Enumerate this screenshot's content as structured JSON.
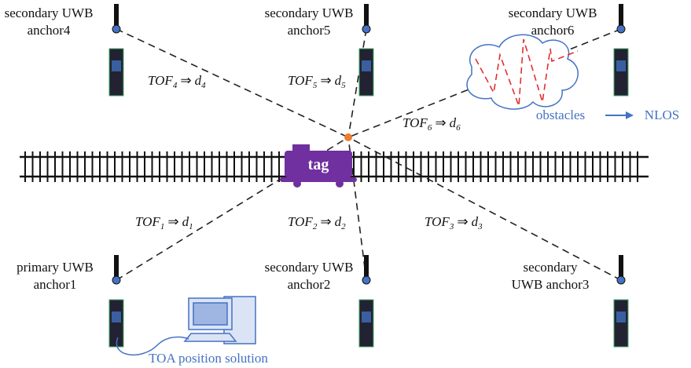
{
  "anchors": [
    {
      "lines": [
        "secondary UWB",
        "anchor4"
      ]
    },
    {
      "lines": [
        "secondary UWB",
        "anchor5"
      ]
    },
    {
      "lines": [
        "secondary UWB",
        "anchor6"
      ]
    },
    {
      "lines": [
        "primary UWB",
        "anchor1"
      ]
    },
    {
      "lines": [
        "secondary UWB",
        "anchor2"
      ]
    },
    {
      "lines": [
        "secondary",
        "UWB anchor3"
      ]
    }
  ],
  "tof_labels": [
    {
      "tof": "TOF",
      "tof_sub": "4",
      "arrow": "⇒",
      "d": "d",
      "d_sub": "4"
    },
    {
      "tof": "TOF",
      "tof_sub": "5",
      "arrow": "⇒",
      "d": "d",
      "d_sub": "5"
    },
    {
      "tof": "TOF",
      "tof_sub": "6",
      "arrow": "⇒",
      "d": "d",
      "d_sub": "6"
    },
    {
      "tof": "TOF",
      "tof_sub": "1",
      "arrow": "⇒",
      "d": "d",
      "d_sub": "1"
    },
    {
      "tof": "TOF",
      "tof_sub": "2",
      "arrow": "⇒",
      "d": "d",
      "d_sub": "2"
    },
    {
      "tof": "TOF",
      "tof_sub": "3",
      "arrow": "⇒",
      "d": "d",
      "d_sub": "3"
    }
  ],
  "tag": "tag",
  "obstacles": "obstacles",
  "nlos": "NLOS",
  "toa": "TOA position solution"
}
